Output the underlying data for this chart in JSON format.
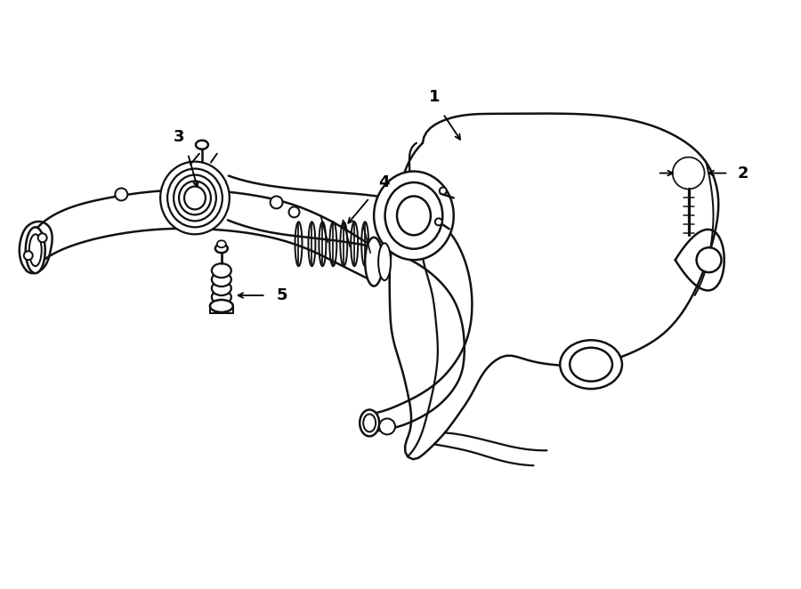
{
  "background_color": "#ffffff",
  "line_color": "#111111",
  "line_width": 1.8,
  "label_color": "#000000",
  "fig_width": 9.0,
  "fig_height": 6.62
}
